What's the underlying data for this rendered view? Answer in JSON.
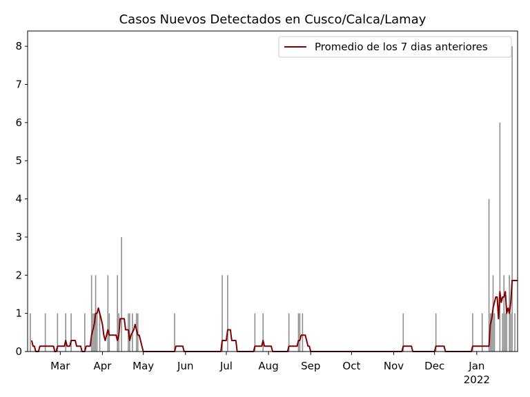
{
  "chart_data": {
    "type": "bar-line",
    "title": "Casos Nuevos Detectados en Cusco/Calca/Lamay",
    "xlim": [
      36,
      396
    ],
    "ylim": [
      0,
      8.4
    ],
    "xticks": [
      {
        "value": 60,
        "label": "Mar"
      },
      {
        "value": 91,
        "label": "Apr"
      },
      {
        "value": 121,
        "label": "May"
      },
      {
        "value": 152,
        "label": "Jun"
      },
      {
        "value": 182,
        "label": "Jul"
      },
      {
        "value": 213,
        "label": "Aug"
      },
      {
        "value": 244,
        "label": "Sep"
      },
      {
        "value": 274,
        "label": "Oct"
      },
      {
        "value": 305,
        "label": "Nov"
      },
      {
        "value": 335,
        "label": "Dec"
      },
      {
        "value": 366,
        "label": "Jan\n2022"
      }
    ],
    "yticks": [
      0,
      1,
      2,
      3,
      4,
      5,
      6,
      7,
      8
    ],
    "legend": "upper right",
    "bars": {
      "color": "#808080",
      "x": [
        38,
        49,
        58,
        64,
        68,
        78,
        83,
        84,
        85,
        86,
        87,
        89,
        95,
        96,
        102,
        103,
        105,
        110,
        111,
        113,
        116,
        117,
        144,
        179,
        183,
        203,
        209,
        228,
        235,
        236,
        238,
        312,
        336,
        363,
        370,
        375,
        376,
        377,
        378,
        379,
        383,
        385,
        386,
        387,
        388,
        390,
        391,
        392,
        394
      ],
      "values": [
        1,
        1,
        1,
        1,
        1,
        1,
        2,
        1,
        1,
        2,
        1,
        1,
        2,
        1,
        2,
        1,
        3,
        1,
        1,
        1,
        1,
        1,
        1,
        2,
        2,
        1,
        1,
        1,
        1,
        1,
        1,
        1,
        1,
        1,
        1,
        4,
        1,
        1,
        2,
        1,
        6,
        1,
        2,
        1,
        1,
        2,
        1,
        8,
        1
      ]
    },
    "series": [
      {
        "name": "Promedio de los 7 dias anteriores",
        "color": "#800000",
        "x": [
          39,
          40,
          41,
          42,
          44,
          45,
          47,
          51,
          55,
          56,
          57,
          58,
          63,
          64,
          65,
          67,
          68,
          71,
          72,
          75,
          76,
          78,
          79,
          82,
          83,
          84,
          85,
          86,
          87,
          88,
          89,
          90,
          91,
          92,
          93,
          94,
          95,
          96,
          101,
          102,
          103,
          104,
          107,
          108,
          110,
          111,
          112,
          114,
          115,
          116,
          117,
          118,
          119,
          120,
          121,
          144,
          145,
          150,
          151,
          178,
          179,
          182,
          183,
          185,
          186,
          189,
          190,
          202,
          203,
          208,
          209,
          210,
          215,
          216,
          227,
          228,
          234,
          235,
          236,
          237,
          240,
          241,
          242,
          243,
          244,
          311,
          312,
          318,
          319,
          335,
          336,
          342,
          343,
          362,
          363,
          375,
          376,
          377,
          378,
          379,
          380,
          381,
          382,
          383,
          384,
          385,
          386,
          387,
          388,
          389,
          390,
          391,
          392,
          396
        ],
        "values": [
          0.29,
          0.14,
          0.14,
          0,
          0,
          0.14,
          0.14,
          0.14,
          0.14,
          0,
          0,
          0.14,
          0.14,
          0.29,
          0.14,
          0.14,
          0.29,
          0.29,
          0.14,
          0.14,
          0,
          0,
          0.14,
          0.14,
          0.43,
          0.57,
          0.71,
          1,
          1,
          1.14,
          1,
          0.86,
          0.71,
          0.43,
          0.29,
          0.43,
          0.57,
          0.43,
          0.43,
          0.29,
          0.43,
          0.86,
          0.86,
          0.57,
          0.57,
          0.29,
          0.43,
          0.57,
          0.71,
          0.57,
          0.43,
          0.43,
          0.29,
          0.14,
          0,
          0,
          0.14,
          0.14,
          0,
          0,
          0.29,
          0.29,
          0.57,
          0.57,
          0.29,
          0.29,
          0,
          0,
          0.14,
          0.14,
          0.29,
          0.14,
          0.14,
          0,
          0,
          0.14,
          0.14,
          0.29,
          0.29,
          0.43,
          0.43,
          0.29,
          0.14,
          0.14,
          0,
          0,
          0.14,
          0.14,
          0,
          0,
          0.14,
          0.14,
          0,
          0,
          0.14,
          0.14,
          0.71,
          0.86,
          1.14,
          1.29,
          1.43,
          1.43,
          0.86,
          1.57,
          1.29,
          1.43,
          1.43,
          1.57,
          1,
          1.14,
          1,
          1.29,
          1.86,
          1.86
        ]
      }
    ]
  }
}
